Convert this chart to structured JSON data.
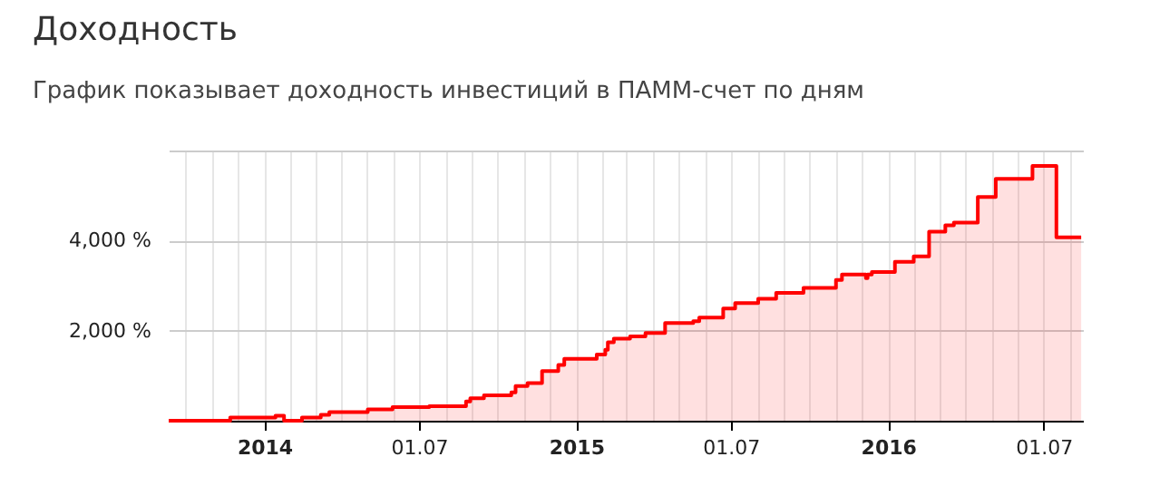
{
  "chart_data": {
    "type": "step",
    "title": "Доходность",
    "subtitle": "График показывает доходность инвестиций в ПАММ-счет по дням",
    "xlim": [
      "2013-09-11",
      "2016-08-16"
    ],
    "xticks": [
      {
        "value": "2013-10-01",
        "label": null
      },
      {
        "value": "2013-11-01",
        "label": null
      },
      {
        "value": "2013-12-01",
        "label": null
      },
      {
        "value": "2014-01-01",
        "label": "2014"
      },
      {
        "value": "2014-02-01",
        "label": null
      },
      {
        "value": "2014-03-01",
        "label": null
      },
      {
        "value": "2014-04-01",
        "label": null
      },
      {
        "value": "2014-05-01",
        "label": null
      },
      {
        "value": "2014-06-01",
        "label": null
      },
      {
        "value": "2014-07-01",
        "label": "01.07"
      },
      {
        "value": "2014-08-01",
        "label": null
      },
      {
        "value": "2014-09-01",
        "label": null
      },
      {
        "value": "2014-10-01",
        "label": null
      },
      {
        "value": "2014-11-01",
        "label": null
      },
      {
        "value": "2014-12-01",
        "label": null
      },
      {
        "value": "2015-01-01",
        "label": "2015"
      },
      {
        "value": "2015-02-01",
        "label": null
      },
      {
        "value": "2015-03-01",
        "label": null
      },
      {
        "value": "2015-04-01",
        "label": null
      },
      {
        "value": "2015-05-01",
        "label": null
      },
      {
        "value": "2015-06-01",
        "label": null
      },
      {
        "value": "2015-07-01",
        "label": "01.07"
      },
      {
        "value": "2015-08-01",
        "label": null
      },
      {
        "value": "2015-09-01",
        "label": null
      },
      {
        "value": "2015-10-01",
        "label": null
      },
      {
        "value": "2015-11-01",
        "label": null
      },
      {
        "value": "2015-12-01",
        "label": null
      },
      {
        "value": "2016-01-01",
        "label": "2016"
      },
      {
        "value": "2016-02-01",
        "label": null
      },
      {
        "value": "2016-03-01",
        "label": null
      },
      {
        "value": "2016-04-01",
        "label": null
      },
      {
        "value": "2016-05-01",
        "label": null
      },
      {
        "value": "2016-06-01",
        "label": null
      },
      {
        "value": "2016-07-01",
        "label": "01.07"
      },
      {
        "value": "2016-08-01",
        "label": null
      }
    ],
    "ylim": [
      0,
      6000
    ],
    "yticks": [
      {
        "value": 0,
        "label": null
      },
      {
        "value": 2000,
        "label": "2,000 %"
      },
      {
        "value": 4000,
        "label": "4,000 %"
      },
      {
        "value": 6000,
        "label": null
      }
    ],
    "grid": true,
    "series": [
      {
        "color": "#ff0000",
        "x": [
          "2013-09-11",
          "2013-11-22",
          "2014-01-14",
          "2014-01-24",
          "2014-02-14",
          "2014-03-08",
          "2014-03-18",
          "2014-05-02",
          "2014-05-31",
          "2014-07-13",
          "2014-08-25",
          "2014-08-30",
          "2014-09-15",
          "2014-10-17",
          "2014-10-22",
          "2014-11-05",
          "2014-11-22",
          "2014-12-11",
          "2014-12-18",
          "2015-01-25",
          "2015-02-04",
          "2015-02-07",
          "2015-02-14",
          "2015-03-05",
          "2015-03-23",
          "2015-04-15",
          "2015-05-18",
          "2015-05-25",
          "2015-06-22",
          "2015-07-06",
          "2015-08-02",
          "2015-08-23",
          "2015-09-24",
          "2015-11-01",
          "2015-11-08",
          "2015-12-06",
          "2015-12-08",
          "2015-12-13",
          "2016-01-09",
          "2016-01-31",
          "2016-02-18",
          "2016-03-08",
          "2016-03-18",
          "2016-04-15",
          "2016-05-06",
          "2016-06-18",
          "2016-07-16",
          "2016-08-14"
        ],
        "values": [
          0,
          70,
          110,
          0,
          70,
          130,
          190,
          250,
          300,
          320,
          430,
          500,
          565,
          630,
          770,
          835,
          1100,
          1240,
          1375,
          1470,
          1575,
          1740,
          1820,
          1870,
          1950,
          2170,
          2210,
          2290,
          2490,
          2610,
          2710,
          2840,
          2950,
          3125,
          3245,
          3165,
          3245,
          3300,
          3530,
          3650,
          4200,
          4340,
          4400,
          4970,
          5370,
          5660,
          4070,
          4070
        ]
      }
    ]
  }
}
